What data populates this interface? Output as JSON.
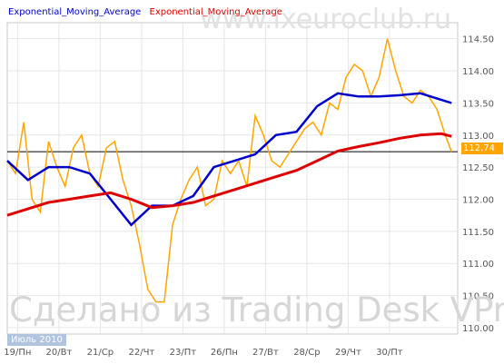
{
  "legend": {
    "ema1": "Exponential_Moving_Average",
    "ema2": "Exponential_Moving_Average"
  },
  "watermark_top": "www.ixeuroclub.ru",
  "watermark_bottom": "Сделано из Trading Desk VPr",
  "month_label": "Июль 2010",
  "price_label": "112.74",
  "colors": {
    "price": "#ffa500",
    "ema1": "#0000cc",
    "ema2": "#dd0000",
    "grid": "#e6e6e6",
    "ref_line": "#000000",
    "axis_text": "#555555"
  },
  "chart_data": {
    "type": "line",
    "title": "",
    "xlabel": "",
    "ylabel": "",
    "ylim": [
      109.9,
      114.75
    ],
    "y_ticks": [
      "110.00",
      "110.50",
      "111.00",
      "111.50",
      "112.00",
      "112.50",
      "113.00",
      "113.50",
      "114.00",
      "114.50"
    ],
    "x_ticks": [
      "19/Пн",
      "20/Вт",
      "21/Ср",
      "22/Чт",
      "23/Пт",
      "26/Пн",
      "27/Вт",
      "28/Ср",
      "29/Чт",
      "30/Пт"
    ],
    "reference_line": 112.74,
    "series": [
      {
        "key": "price",
        "x": [
          0,
          0.2,
          0.4,
          0.6,
          0.8,
          1.0,
          1.2,
          1.4,
          1.6,
          1.8,
          2.0,
          2.2,
          2.4,
          2.6,
          2.8,
          3.0,
          3.2,
          3.4,
          3.6,
          3.8,
          4.0,
          4.2,
          4.4,
          4.6,
          4.8,
          5.0,
          5.2,
          5.4,
          5.6,
          5.8,
          6.0,
          6.2,
          6.4,
          6.6,
          6.8,
          7.0,
          7.2,
          7.4,
          7.6,
          7.8,
          8.0,
          8.2,
          8.4,
          8.6,
          8.8,
          9.0,
          9.2,
          9.4,
          9.6,
          9.8,
          10.0,
          10.2,
          10.4,
          10.6,
          10.75
        ],
        "values": [
          112.6,
          112.4,
          113.2,
          112.0,
          111.8,
          112.9,
          112.5,
          112.2,
          112.8,
          113.0,
          112.4,
          112.2,
          112.8,
          112.9,
          112.3,
          111.9,
          111.3,
          110.6,
          110.4,
          110.4,
          111.6,
          112.0,
          112.3,
          112.5,
          111.9,
          112.0,
          112.6,
          112.4,
          112.6,
          112.2,
          113.3,
          113.0,
          112.6,
          112.5,
          112.7,
          112.9,
          113.1,
          113.2,
          113.0,
          113.5,
          113.4,
          113.9,
          114.1,
          114.0,
          113.6,
          113.9,
          114.5,
          114.0,
          113.6,
          113.5,
          113.7,
          113.6,
          113.4,
          113.0,
          112.74
        ]
      },
      {
        "key": "ema1",
        "name": "Exponential_Moving_Average",
        "x": [
          0,
          0.5,
          1.0,
          1.5,
          2.0,
          2.5,
          3.0,
          3.5,
          4.0,
          4.5,
          5.0,
          5.5,
          6.0,
          6.5,
          7.0,
          7.5,
          8.0,
          8.5,
          9.0,
          9.5,
          10.0,
          10.5,
          10.75
        ],
        "values": [
          112.6,
          112.3,
          112.5,
          112.5,
          112.4,
          112.0,
          111.6,
          111.9,
          111.9,
          112.05,
          112.5,
          112.6,
          112.7,
          113.0,
          113.05,
          113.45,
          113.65,
          113.6,
          113.6,
          113.62,
          113.65,
          113.55,
          113.5
        ]
      },
      {
        "key": "ema2",
        "name": "Exponential_Moving_Average",
        "x": [
          0,
          0.5,
          1.0,
          1.5,
          2.0,
          2.5,
          3.0,
          3.5,
          4.0,
          4.5,
          5.0,
          5.5,
          6.0,
          6.5,
          7.0,
          7.5,
          8.0,
          8.5,
          9.0,
          9.5,
          10.0,
          10.5,
          10.75
        ],
        "values": [
          111.75,
          111.85,
          111.95,
          112.0,
          112.05,
          112.1,
          112.0,
          111.87,
          111.9,
          111.95,
          112.05,
          112.15,
          112.25,
          112.35,
          112.45,
          112.6,
          112.75,
          112.82,
          112.88,
          112.95,
          113.0,
          113.02,
          112.98
        ]
      }
    ],
    "grid": true,
    "legend_position": "top-left"
  }
}
